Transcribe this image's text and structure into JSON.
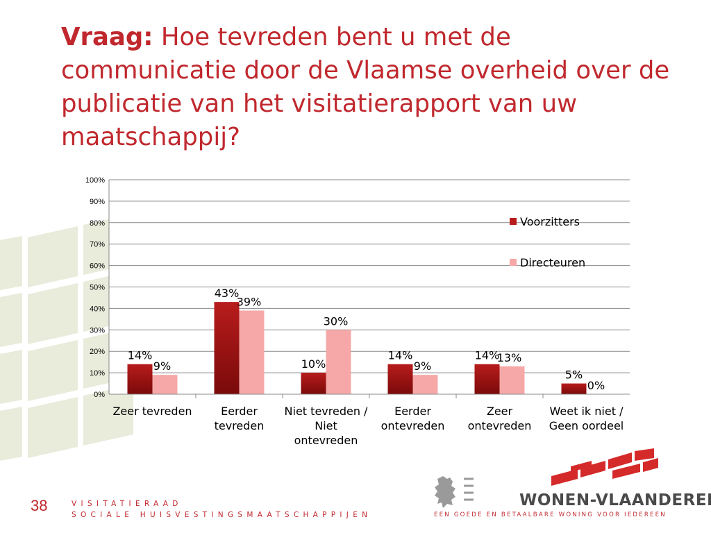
{
  "slide": {
    "title_prefix": "Vraag:",
    "title_text": "Hoe tevreden bent u met de communicatie door de Vlaamse overheid over de publicatie van het visitatierapport van uw maatschappij?",
    "page_number": "38",
    "footer_line1": "VISITATIERAAD",
    "footer_line2": "SOCIALE HUISVESTINGSMAATSCHAPPIJEN",
    "brand_name": "WONEN-VLAANDEREN",
    "brand_tagline": "EEN GOEDE EN BETAALBARE WONING VOOR IEDEREEN",
    "colors": {
      "accent": "#c0282d"
    }
  },
  "chart_data": {
    "type": "bar",
    "categories": [
      "Zeer tevreden",
      "Eerder tevreden",
      "Niet tevreden / Niet ontevreden",
      "Eerder ontevreden",
      "Zeer ontevreden",
      "Weet ik niet / Geen oordeel"
    ],
    "series": [
      {
        "name": "Voorzitters",
        "values": [
          14,
          43,
          10,
          14,
          14,
          5
        ],
        "labels": [
          "14%",
          "43%",
          "10%",
          "14%",
          "14%",
          "5%"
        ],
        "color": "#b81c1c"
      },
      {
        "name": "Directeuren",
        "values": [
          9,
          39,
          30,
          9,
          13,
          0
        ],
        "labels": [
          "9%",
          "39%",
          "30%",
          "9%",
          "13%",
          "0%"
        ],
        "color": "#f6a8a8"
      }
    ],
    "yticks": [
      "0%",
      "10%",
      "20%",
      "30%",
      "40%",
      "50%",
      "60%",
      "70%",
      "80%",
      "90%",
      "100%"
    ],
    "ylim": [
      0,
      100
    ],
    "grid": true,
    "legend_position": "right"
  }
}
